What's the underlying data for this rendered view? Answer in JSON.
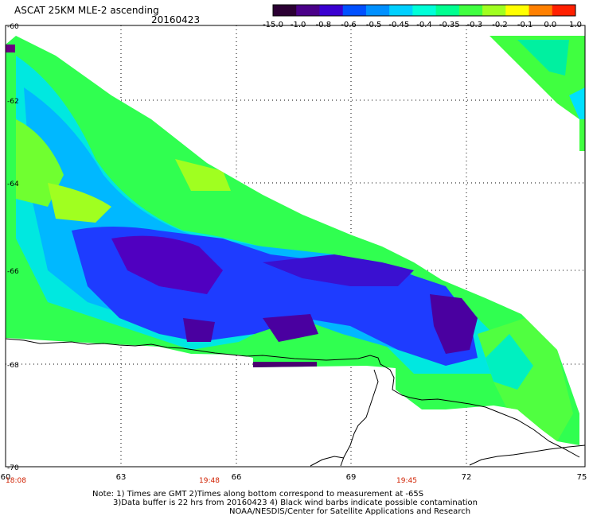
{
  "header": {
    "title": "ASCAT 25KM MLE-2 ascending",
    "date": "20160423"
  },
  "colorbar": {
    "labels": [
      "-15.0",
      "-1.0",
      "-0.8",
      "-0.6",
      "-0.5",
      "-0.45",
      "-0.4",
      "-0.35",
      "-0.3",
      "-0.2",
      "-0.1",
      "0.0",
      "1.0"
    ],
    "colors": [
      "#2b0033",
      "#4a0088",
      "#3a00d0",
      "#0050ff",
      "#0090ff",
      "#00d0ff",
      "#00ffd8",
      "#00ff90",
      "#40ff40",
      "#a0ff20",
      "#ffff00",
      "#ff8000",
      "#ff2000"
    ]
  },
  "axes": {
    "x_ticks": [
      "60",
      "63",
      "66",
      "69",
      "72",
      "75"
    ],
    "y_ticks": [
      "-60",
      "-62",
      "-64",
      "-66",
      "-68",
      "-70"
    ]
  },
  "times": [
    "18:08",
    "19:48",
    "19:45"
  ],
  "notes": [
    "Note: 1) Times are GMT 2)Times along bottom correspond to measurement at -65S",
    "3)Data buffer is 22 hrs from 20160423 4) Black wind barbs indicate possible contamination",
    "NOAA/NESDIS/Center for Satellite Applications and Research"
  ]
}
